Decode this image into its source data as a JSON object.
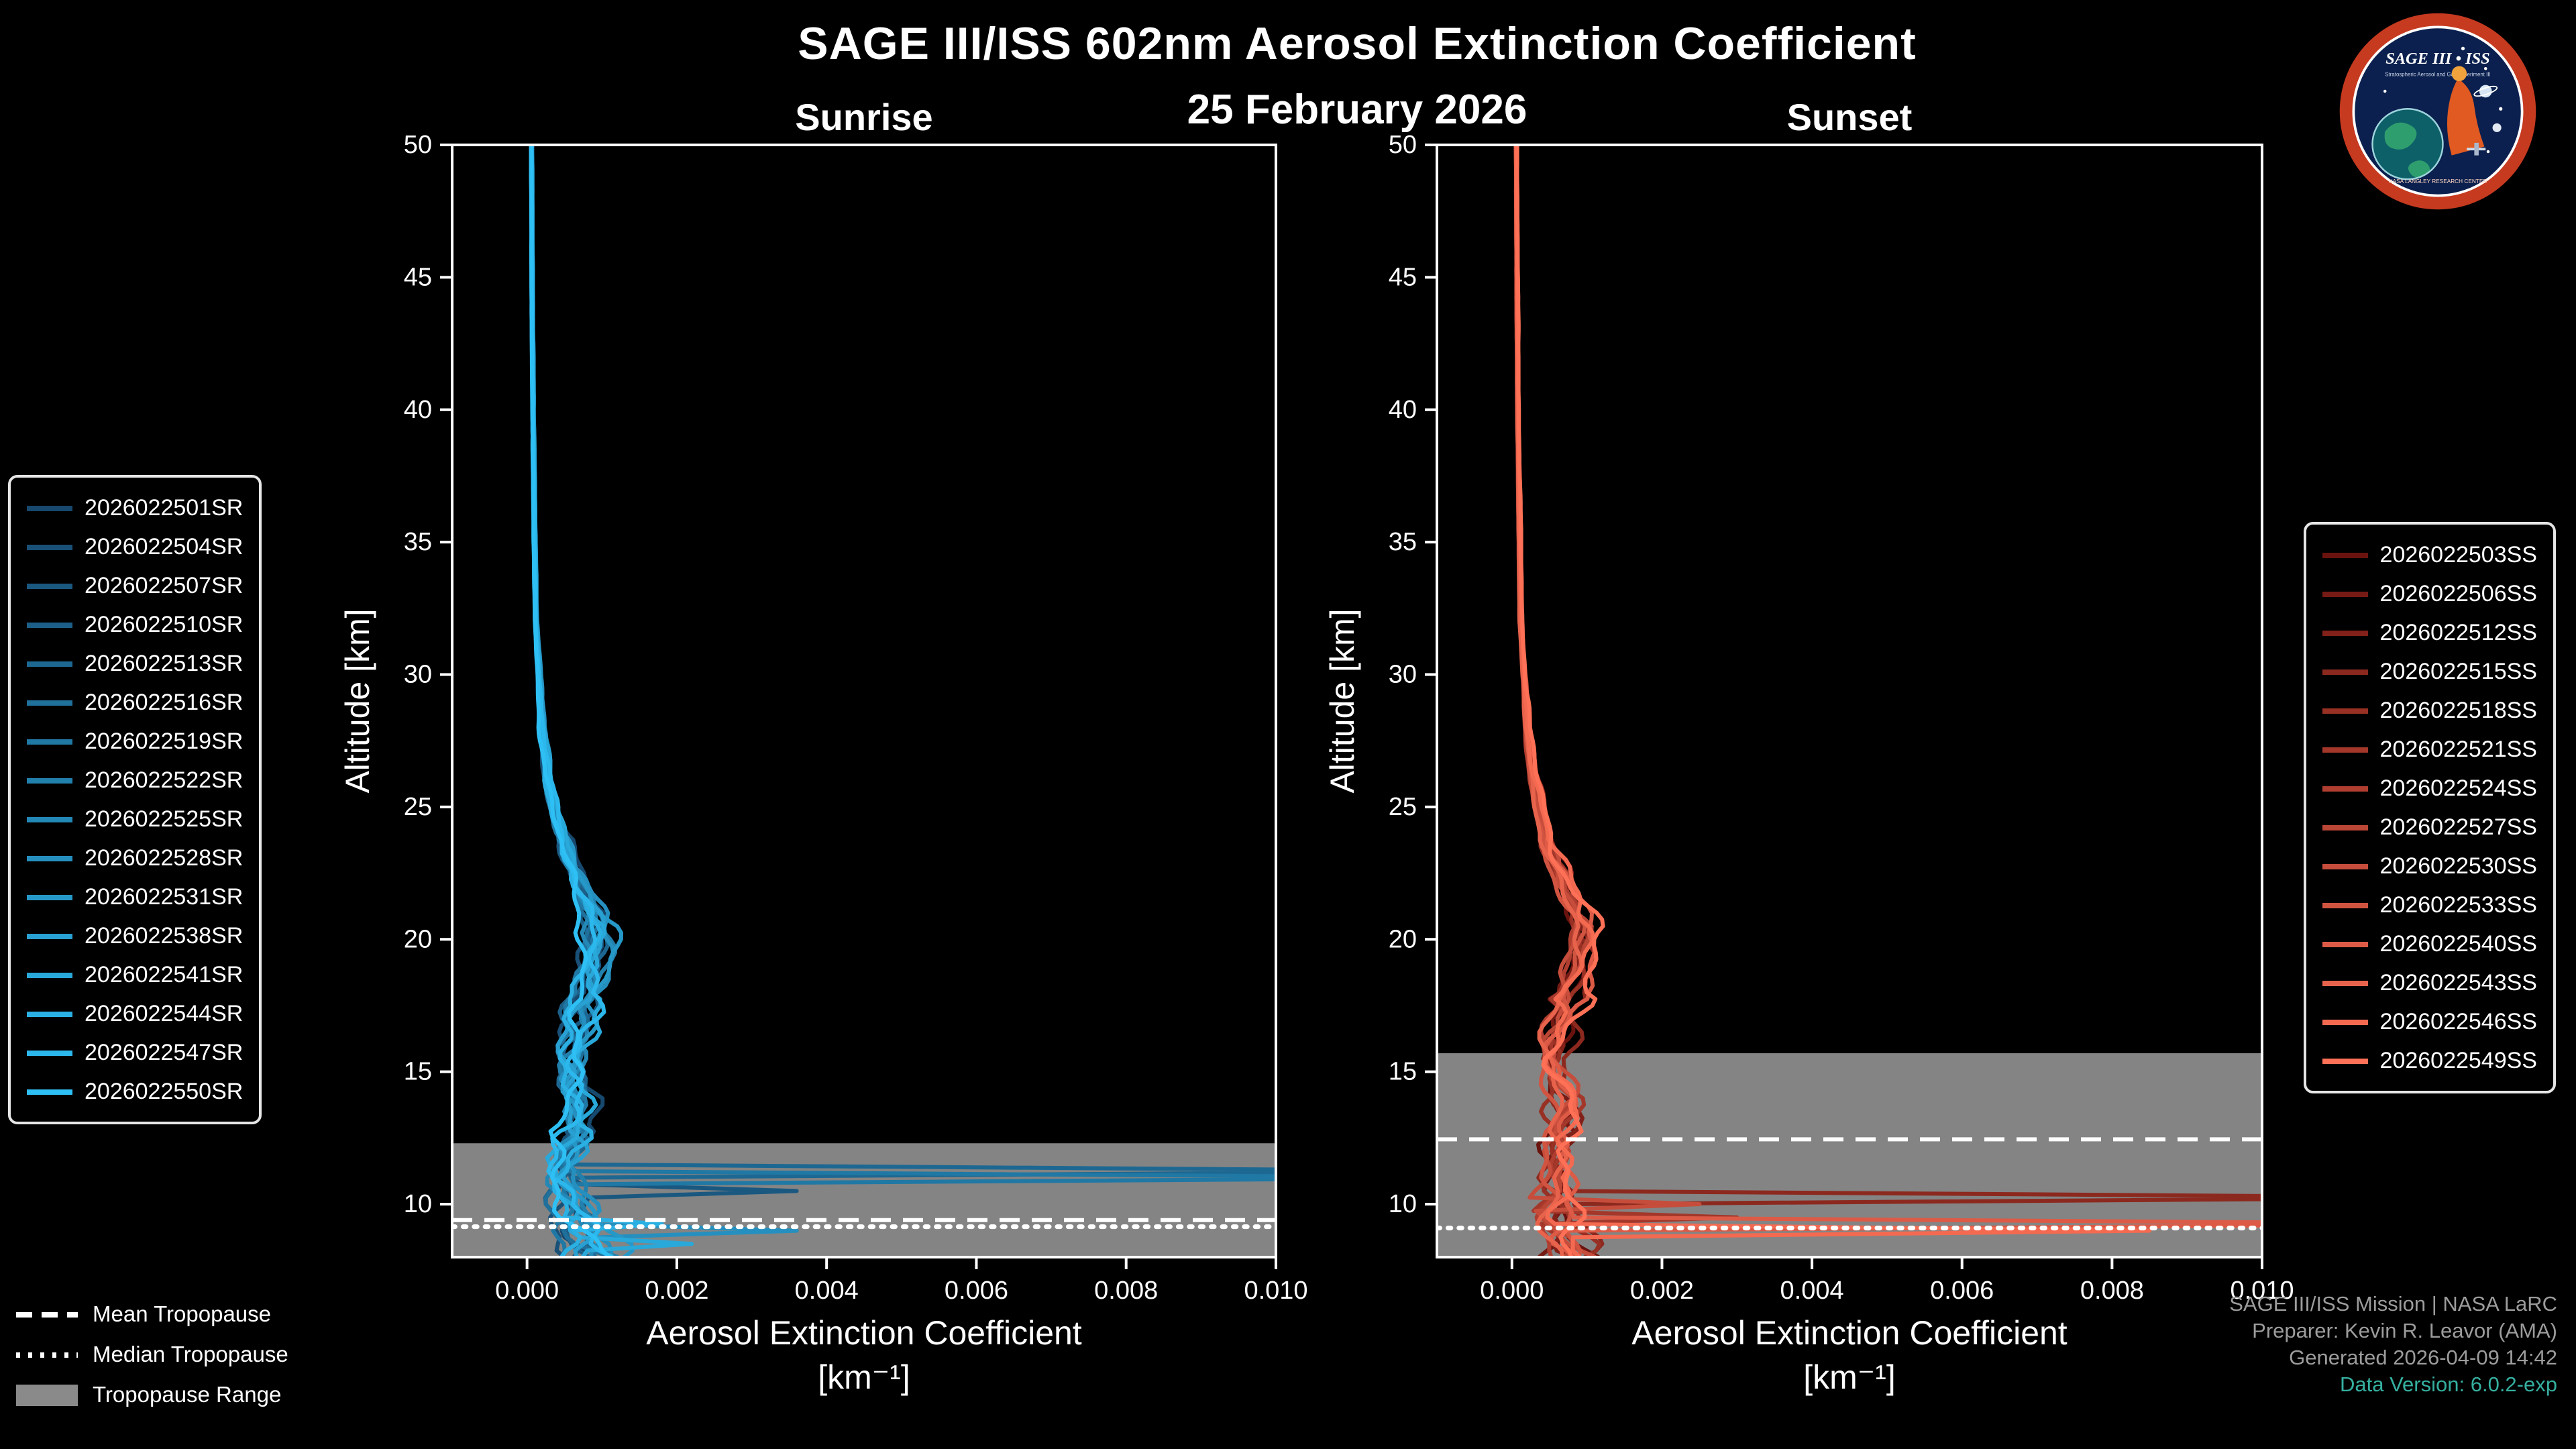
{
  "chart_data": {
    "type": "line",
    "title": "SAGE III/ISS 602nm Aerosol Extinction Coefficient",
    "subtitle": "25 February 2026",
    "xlabel": "Aerosol Extinction Coefficient",
    "xlabel_units": "[km⁻¹]",
    "ylabel": "Altitude [km]",
    "xlim": [
      -0.001,
      0.01
    ],
    "ylim": [
      8,
      50
    ],
    "x_tick_values": [
      0.0,
      0.002,
      0.004,
      0.006,
      0.008,
      0.01
    ],
    "x_tick_labels": [
      "0.000",
      "0.002",
      "0.004",
      "0.006",
      "0.008",
      "0.010"
    ],
    "y_tick_values": [
      10,
      15,
      20,
      25,
      30,
      35,
      40,
      45,
      50
    ],
    "y_tick_labels": [
      "10",
      "15",
      "20",
      "25",
      "30",
      "35",
      "40",
      "45",
      "50"
    ],
    "grid": false,
    "base_profile": [
      [
        8,
        0.00095
      ],
      [
        9,
        0.0007
      ],
      [
        10,
        0.00055
      ],
      [
        11,
        0.0005
      ],
      [
        12.5,
        0.00062
      ],
      [
        14,
        0.00072
      ],
      [
        15.5,
        0.0006
      ],
      [
        17,
        0.0007
      ],
      [
        19,
        0.0009
      ],
      [
        20.5,
        0.00095
      ],
      [
        22,
        0.00072
      ],
      [
        24,
        0.00046
      ],
      [
        26,
        0.0003
      ],
      [
        28,
        0.0002
      ],
      [
        32,
        0.00012
      ],
      [
        40,
        8e-05
      ],
      [
        50,
        6e-05
      ]
    ],
    "panels": [
      {
        "id": "sunrise",
        "title": "Sunrise",
        "color_start": "#17486e",
        "color_end": "#2ec0f5",
        "legend_side": "left",
        "series": [
          "2026022501SR",
          "2026022504SR",
          "2026022507SR",
          "2026022510SR",
          "2026022513SR",
          "2026022516SR",
          "2026022519SR",
          "2026022522SR",
          "2026022525SR",
          "2026022528SR",
          "2026022531SR",
          "2026022538SR",
          "2026022541SR",
          "2026022544SR",
          "2026022547SR",
          "2026022550SR"
        ],
        "tropopause": {
          "mean_km": 9.4,
          "median_km": 9.15,
          "range_km": [
            8,
            12.3
          ]
        },
        "cloud_spikes": [
          {
            "series": 2,
            "alt_km": 10.5,
            "value": 0.0036
          },
          {
            "series": 4,
            "alt_km": 11.3,
            "value": 0.013
          },
          {
            "series": 6,
            "alt_km": 10.95,
            "value": 0.013
          },
          {
            "series": 9,
            "alt_km": 9.05,
            "value": 0.0036
          },
          {
            "series": 12,
            "alt_km": 8.55,
            "value": 0.0022
          },
          {
            "series": 13,
            "alt_km": 9.35,
            "value": 0.0018
          }
        ]
      },
      {
        "id": "sunset",
        "title": "Sunset",
        "color_start": "#6a130e",
        "color_end": "#ff7157",
        "legend_side": "right",
        "series": [
          "2026022503SS",
          "2026022506SS",
          "2026022512SS",
          "2026022515SS",
          "2026022518SS",
          "2026022521SS",
          "2026022524SS",
          "2026022527SS",
          "2026022530SS",
          "2026022533SS",
          "2026022540SS",
          "2026022543SS",
          "2026022546SS",
          "2026022549SS"
        ],
        "tropopause": {
          "mean_km": 12.45,
          "median_km": 9.1,
          "range_km": [
            8,
            15.7
          ]
        },
        "cloud_spikes": [
          {
            "series": 3,
            "alt_km": 10.3,
            "value": 0.013
          },
          {
            "series": 5,
            "alt_km": 9.55,
            "value": 0.003
          },
          {
            "series": 8,
            "alt_km": 10.05,
            "value": 0.0025
          },
          {
            "series": 10,
            "alt_km": 9.3,
            "value": 0.013
          },
          {
            "series": 12,
            "alt_km": 8.9,
            "value": 0.0085
          }
        ]
      }
    ]
  },
  "tropopause_legend": {
    "items": [
      {
        "label": "Mean Tropopause",
        "style": "dashed"
      },
      {
        "label": "Median Tropopause",
        "style": "dotted"
      },
      {
        "label": "Tropopause Range",
        "style": "band"
      }
    ]
  },
  "credits": {
    "line1": "SAGE III/ISS Mission | NASA LaRC",
    "line2": "Preparer: Kevin R. Leavor (AMA)",
    "line3": "Generated 2026-04-09 14:42",
    "line4": "Data Version: 6.0.2-exp"
  },
  "logo": {
    "title": "SAGE III • ISS",
    "subtitle": "Stratospheric Aerosol and Gas Experiment III",
    "ring_text": "NASA LANGLEY RESEARCH CENTER"
  },
  "colors": {
    "background": "#000000",
    "text": "#ffffff",
    "tropopause_band": "#848484",
    "credits_gray": "#9c9c9c",
    "version_teal": "#35b0a0"
  }
}
